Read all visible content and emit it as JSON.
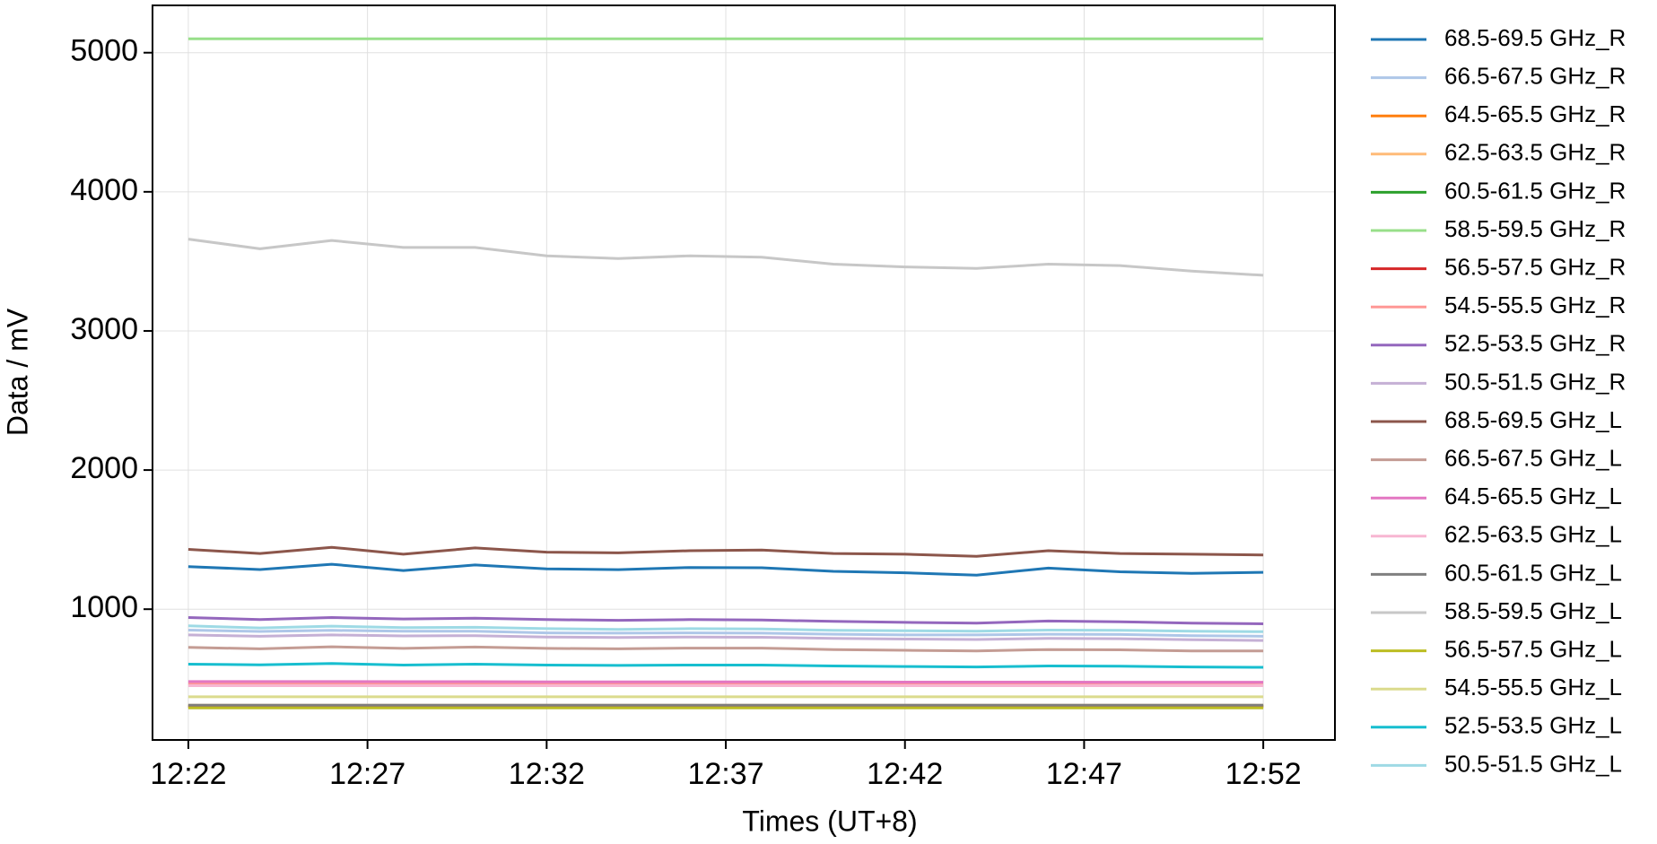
{
  "chart_data": {
    "type": "line",
    "x_label": "Times (UT+8)",
    "y_label": "Data / mV",
    "x": [
      "12:22",
      "12:24",
      "12:26",
      "12:28",
      "12:30",
      "12:32",
      "12:34",
      "12:36",
      "12:38",
      "12:40",
      "12:42",
      "12:44",
      "12:46",
      "12:48",
      "12:50",
      "12:52"
    ],
    "xlim": [
      "12:21",
      "12:54"
    ],
    "xticks": [
      "12:22",
      "12:27",
      "12:32",
      "12:37",
      "12:42",
      "12:47",
      "12:52"
    ],
    "ylim": [
      60,
      5340
    ],
    "yticks": [
      1000,
      2000,
      3000,
      4000,
      5000
    ],
    "grid": true,
    "legend": "outside-right",
    "series": [
      {
        "name": "68.5-69.5 GHz_R",
        "color": "#1f77b4",
        "values": [
          1306,
          1285,
          1323,
          1278,
          1318,
          1290,
          1284,
          1300,
          1298,
          1272,
          1262,
          1245,
          1295,
          1269,
          1257,
          1265
        ]
      },
      {
        "name": "66.5-67.5 GHz_R",
        "color": "#aec7e8",
        "values": [
          850,
          840,
          848,
          842,
          842,
          830,
          828,
          830,
          828,
          820,
          815,
          815,
          820,
          818,
          810,
          805
        ]
      },
      {
        "name": "64.5-65.5 GHz_R",
        "color": "#ff7f0e",
        "values": [
          300,
          300,
          300,
          300,
          300,
          300,
          300,
          300,
          300,
          300,
          300,
          300,
          300,
          300,
          300,
          300
        ]
      },
      {
        "name": "62.5-63.5 GHz_R",
        "color": "#ffbb78",
        "values": [
          310,
          310,
          310,
          310,
          310,
          310,
          310,
          310,
          310,
          310,
          310,
          310,
          310,
          310,
          310,
          310
        ]
      },
      {
        "name": "60.5-61.5 GHz_R",
        "color": "#2ca02c",
        "values": [
          305,
          305,
          305,
          305,
          305,
          305,
          305,
          305,
          305,
          305,
          305,
          305,
          305,
          305,
          305,
          305
        ]
      },
      {
        "name": "58.5-59.5 GHz_R",
        "color": "#98df8a",
        "values": [
          5100,
          5100,
          5100,
          5100,
          5100,
          5100,
          5100,
          5100,
          5100,
          5100,
          5100,
          5100,
          5100,
          5100,
          5100,
          5100
        ]
      },
      {
        "name": "56.5-57.5 GHz_R",
        "color": "#d62728",
        "values": [
          300,
          300,
          300,
          300,
          300,
          300,
          300,
          300,
          300,
          300,
          300,
          300,
          300,
          300,
          300,
          300
        ]
      },
      {
        "name": "54.5-55.5 GHz_R",
        "color": "#ff9896",
        "values": [
          465,
          465,
          464,
          464,
          463,
          462,
          462,
          461,
          460,
          459,
          458,
          458,
          457,
          456,
          456,
          455
        ]
      },
      {
        "name": "52.5-53.5 GHz_R",
        "color": "#9467bd",
        "values": [
          940,
          925,
          940,
          930,
          935,
          925,
          920,
          925,
          922,
          912,
          905,
          900,
          915,
          910,
          900,
          895
        ]
      },
      {
        "name": "50.5-51.5 GHz_R",
        "color": "#c5b0d5",
        "values": [
          815,
          805,
          815,
          808,
          810,
          800,
          797,
          800,
          798,
          790,
          785,
          782,
          790,
          788,
          780,
          775
        ]
      },
      {
        "name": "68.5-69.5 GHz_L",
        "color": "#8c564b",
        "values": [
          1430,
          1400,
          1445,
          1395,
          1440,
          1410,
          1405,
          1420,
          1425,
          1400,
          1395,
          1380,
          1420,
          1400,
          1395,
          1390
        ]
      },
      {
        "name": "66.5-67.5 GHz_L",
        "color": "#c49c94",
        "values": [
          725,
          715,
          730,
          718,
          728,
          718,
          715,
          720,
          720,
          710,
          705,
          700,
          710,
          708,
          700,
          700
        ]
      },
      {
        "name": "64.5-65.5 GHz_L",
        "color": "#e377c2",
        "values": [
          480,
          480,
          480,
          479,
          479,
          478,
          478,
          478,
          477,
          477,
          476,
          476,
          476,
          475,
          475,
          475
        ]
      },
      {
        "name": "62.5-63.5 GHz_L",
        "color": "#f7b6d2",
        "values": [
          450,
          450,
          450,
          450,
          450,
          450,
          450,
          450,
          450,
          450,
          450,
          450,
          450,
          450,
          450,
          450
        ]
      },
      {
        "name": "60.5-61.5 GHz_L",
        "color": "#7f7f7f",
        "values": [
          310,
          310,
          310,
          310,
          310,
          310,
          310,
          310,
          310,
          310,
          310,
          310,
          310,
          310,
          310,
          310
        ]
      },
      {
        "name": "58.5-59.5 GHz_L",
        "color": "#c7c7c7",
        "values": [
          3660,
          3590,
          3650,
          3600,
          3600,
          3540,
          3520,
          3540,
          3530,
          3480,
          3460,
          3450,
          3480,
          3470,
          3430,
          3400
        ]
      },
      {
        "name": "56.5-57.5 GHz_L",
        "color": "#bcbd22",
        "values": [
          290,
          290,
          290,
          290,
          290,
          290,
          290,
          290,
          290,
          290,
          290,
          290,
          290,
          290,
          290,
          290
        ]
      },
      {
        "name": "54.5-55.5 GHz_L",
        "color": "#dbdb8d",
        "values": [
          370,
          370,
          370,
          370,
          370,
          370,
          370,
          370,
          370,
          370,
          370,
          370,
          370,
          370,
          370,
          370
        ]
      },
      {
        "name": "52.5-53.5 GHz_L",
        "color": "#17becf",
        "values": [
          605,
          600,
          610,
          598,
          605,
          598,
          596,
          598,
          598,
          592,
          588,
          585,
          592,
          590,
          585,
          582
        ]
      },
      {
        "name": "50.5-51.5 GHz_L",
        "color": "#9edae5",
        "values": [
          880,
          865,
          878,
          868,
          870,
          860,
          855,
          860,
          858,
          848,
          845,
          842,
          850,
          848,
          842,
          838
        ]
      }
    ]
  }
}
